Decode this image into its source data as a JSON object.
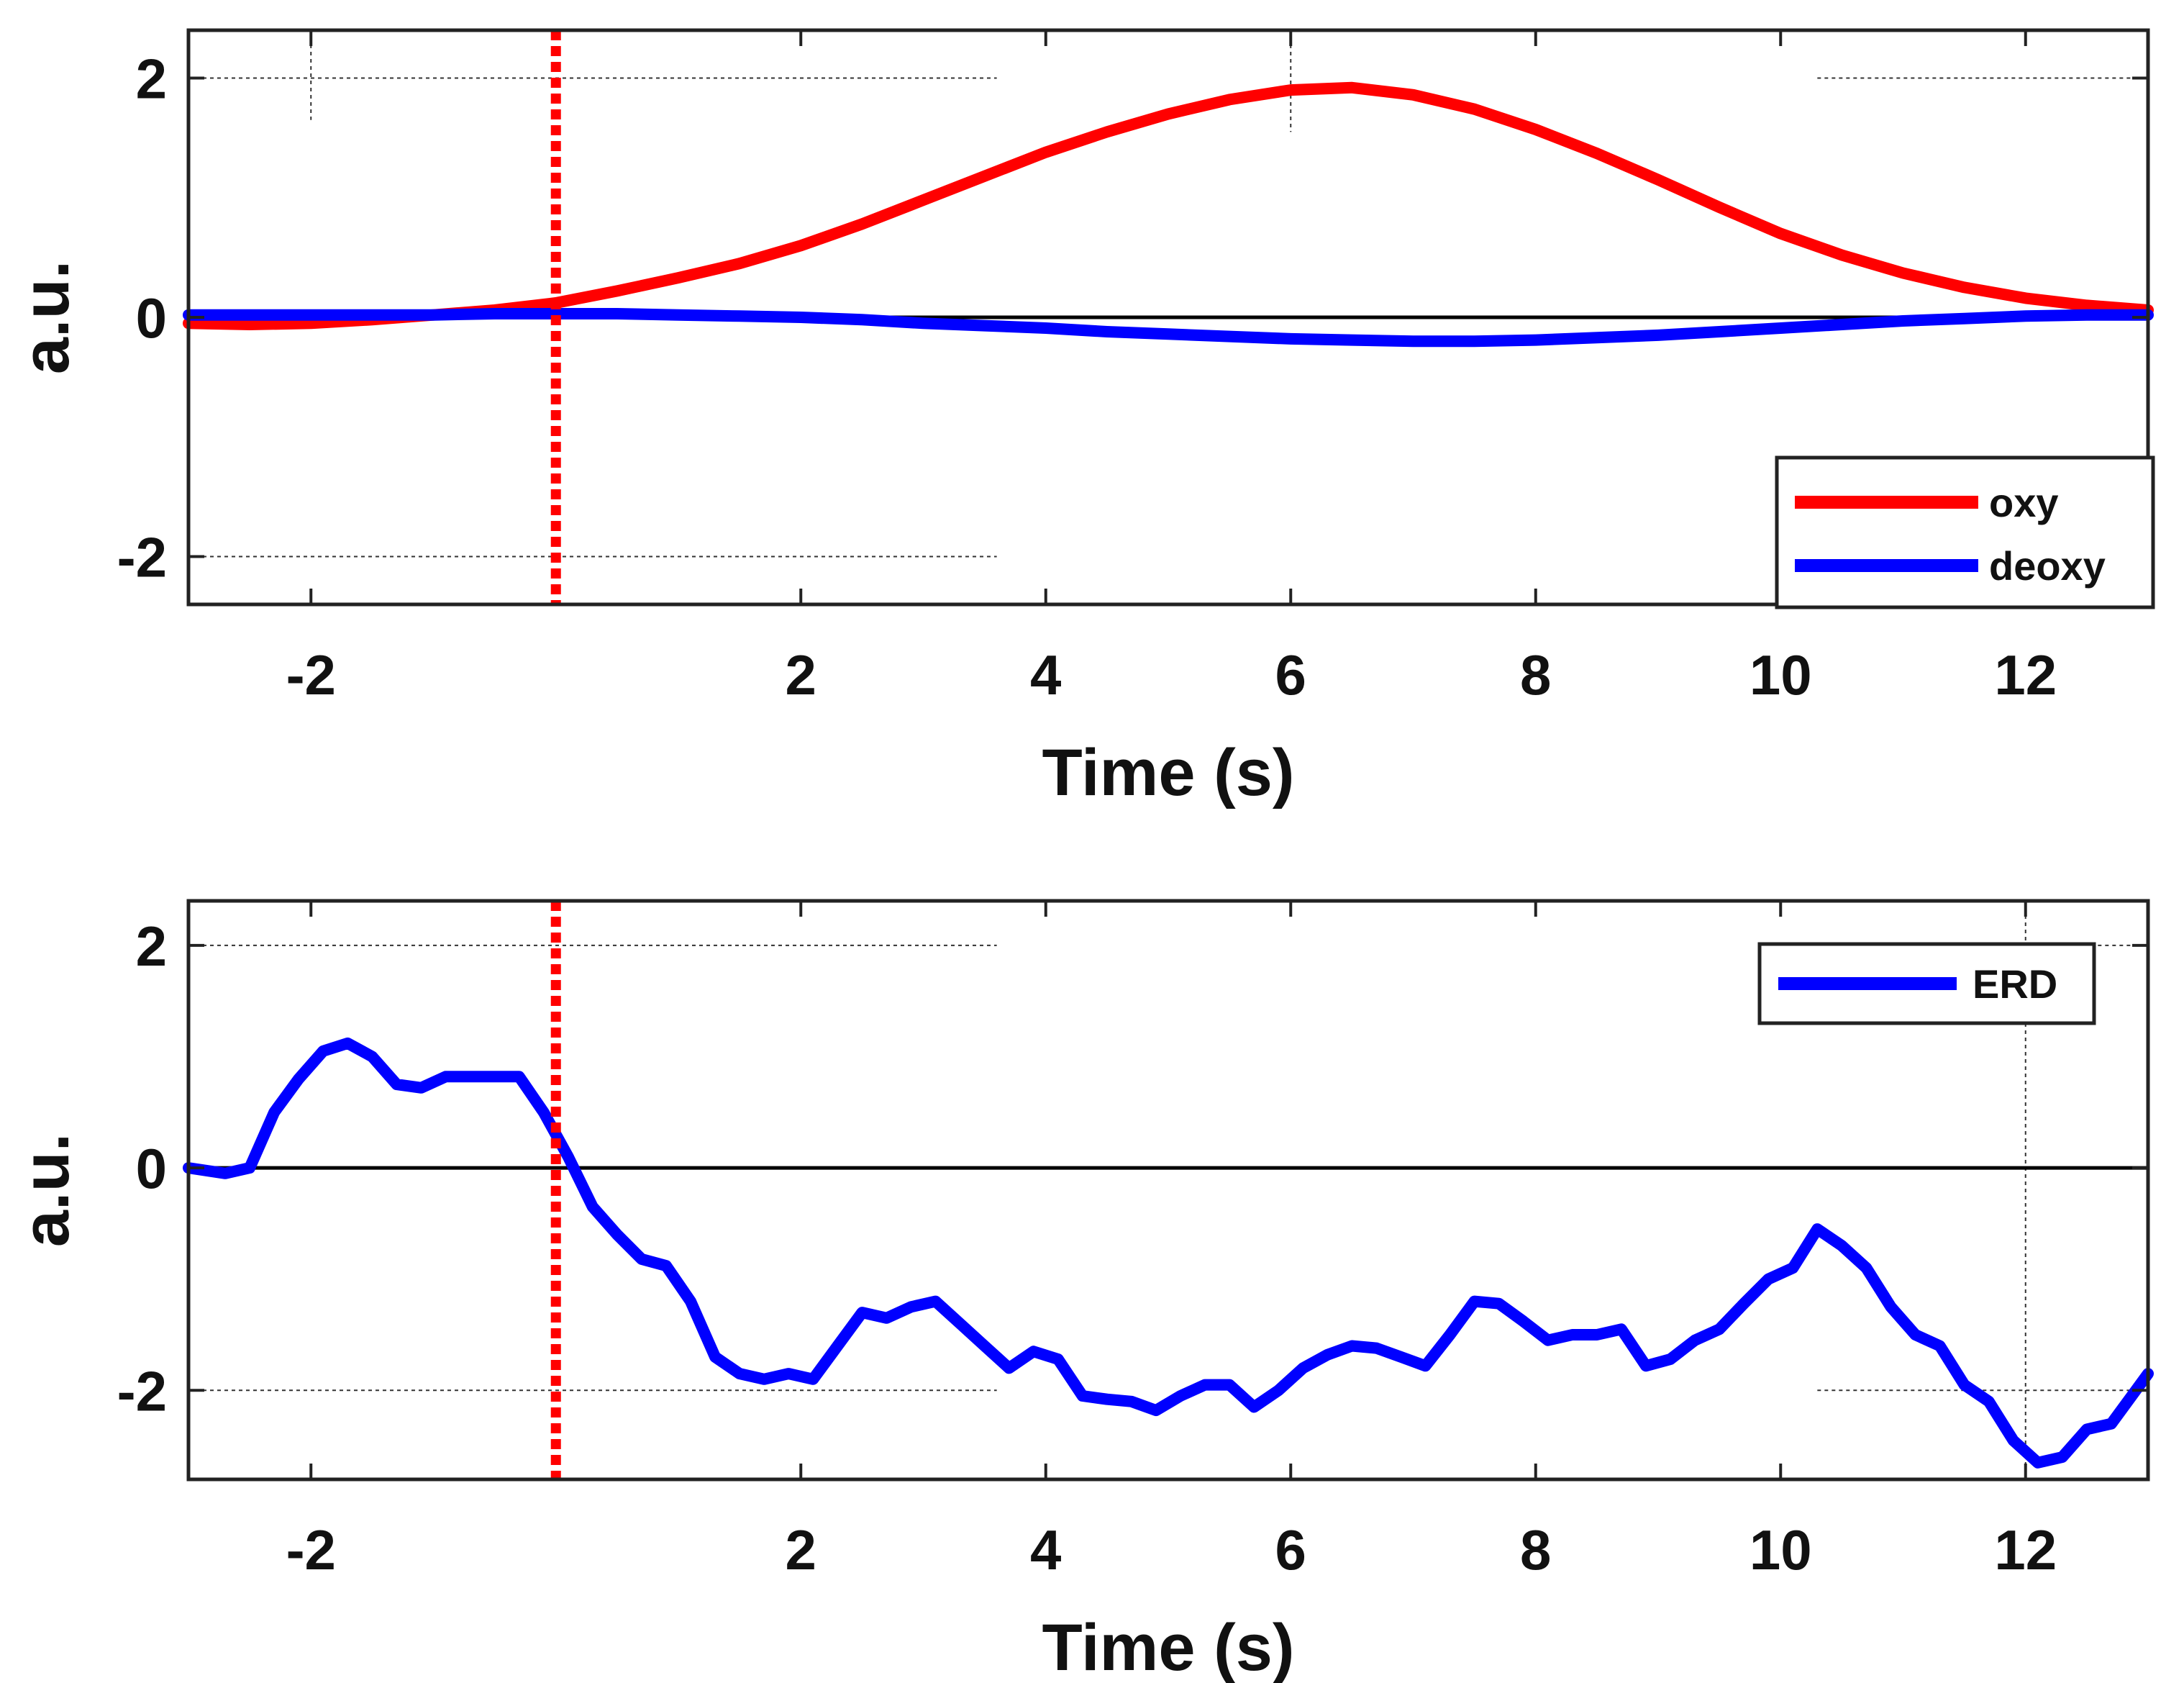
{
  "chart_data": [
    {
      "type": "line",
      "xlabel": "Time (s)",
      "ylabel": "a.u.",
      "xlim": [
        -3,
        13
      ],
      "ylim": [
        -2.4,
        2.4
      ],
      "xticks": [
        -2,
        2,
        4,
        6,
        8,
        10,
        12
      ],
      "yticks": [
        -2,
        0,
        2
      ],
      "grid": "partial dotted",
      "legend_position": "bottom-right",
      "stimulus_onset": 0,
      "colors": {
        "oxy": "#ff0000",
        "deoxy": "#0000ff",
        "onset": "#ff0000",
        "zero": "#000000"
      },
      "series": [
        {
          "name": "oxy",
          "x": [
            -3,
            -2.5,
            -2,
            -1.5,
            -1,
            -0.5,
            0,
            0.5,
            1,
            1.5,
            2,
            2.5,
            3,
            3.5,
            4,
            4.5,
            5,
            5.5,
            6,
            6.5,
            7,
            7.5,
            8,
            8.5,
            9,
            9.5,
            10,
            10.5,
            11,
            11.5,
            12,
            12.5,
            13
          ],
          "values": [
            -0.05,
            -0.06,
            -0.05,
            -0.02,
            0.02,
            0.06,
            0.12,
            0.22,
            0.33,
            0.45,
            0.6,
            0.78,
            0.98,
            1.18,
            1.38,
            1.55,
            1.7,
            1.82,
            1.9,
            1.92,
            1.86,
            1.74,
            1.57,
            1.37,
            1.15,
            0.92,
            0.7,
            0.52,
            0.37,
            0.25,
            0.16,
            0.1,
            0.06
          ]
        },
        {
          "name": "deoxy",
          "x": [
            -3,
            -2.5,
            -2,
            -1.5,
            -1,
            -0.5,
            0,
            0.5,
            1,
            1.5,
            2,
            2.5,
            3,
            3.5,
            4,
            4.5,
            5,
            5.5,
            6,
            6.5,
            7,
            7.5,
            8,
            8.5,
            9,
            9.5,
            10,
            10.5,
            11,
            11.5,
            12,
            12.5,
            13
          ],
          "values": [
            0.02,
            0.02,
            0.02,
            0.02,
            0.02,
            0.03,
            0.03,
            0.03,
            0.02,
            0.01,
            0.0,
            -0.02,
            -0.05,
            -0.07,
            -0.09,
            -0.12,
            -0.14,
            -0.16,
            -0.18,
            -0.19,
            -0.2,
            -0.2,
            -0.19,
            -0.17,
            -0.15,
            -0.12,
            -0.09,
            -0.06,
            -0.03,
            -0.01,
            0.01,
            0.02,
            0.02
          ]
        }
      ]
    },
    {
      "type": "line",
      "xlabel": "Time (s)",
      "ylabel": "a.u.",
      "xlim": [
        -3,
        13
      ],
      "ylim": [
        -2.8,
        2.4
      ],
      "xticks": [
        -2,
        2,
        4,
        6,
        8,
        10,
        12
      ],
      "yticks": [
        -2,
        0,
        2
      ],
      "grid": "partial dotted",
      "legend_position": "top-right",
      "stimulus_onset": 0,
      "colors": {
        "ERD": "#0000ff",
        "onset": "#ff0000",
        "zero": "#000000"
      },
      "series": [
        {
          "name": "ERD",
          "x": [
            -3,
            -2.7,
            -2.5,
            -2.3,
            -2.1,
            -1.9,
            -1.7,
            -1.5,
            -1.3,
            -1.1,
            -0.9,
            -0.7,
            -0.5,
            -0.3,
            -0.1,
            0.1,
            0.3,
            0.5,
            0.7,
            0.9,
            1.1,
            1.3,
            1.5,
            1.7,
            1.9,
            2.1,
            2.3,
            2.5,
            2.7,
            2.9,
            3.1,
            3.3,
            3.5,
            3.7,
            3.9,
            4.1,
            4.3,
            4.5,
            4.7,
            4.9,
            5.1,
            5.3,
            5.5,
            5.7,
            5.9,
            6.1,
            6.3,
            6.5,
            6.7,
            6.9,
            7.1,
            7.3,
            7.5,
            7.7,
            7.9,
            8.1,
            8.3,
            8.5,
            8.7,
            8.9,
            9.1,
            9.3,
            9.5,
            9.7,
            9.9,
            10.1,
            10.3,
            10.5,
            10.7,
            10.9,
            11.1,
            11.3,
            11.5,
            11.7,
            11.9,
            12.1,
            12.3,
            12.5,
            12.7,
            12.9,
            13
          ],
          "values": [
            0.0,
            -0.05,
            0.0,
            0.5,
            0.8,
            1.05,
            1.12,
            1.0,
            0.75,
            0.72,
            0.82,
            0.82,
            0.82,
            0.82,
            0.5,
            0.1,
            -0.35,
            -0.6,
            -0.82,
            -0.88,
            -1.2,
            -1.7,
            -1.85,
            -1.9,
            -1.85,
            -1.9,
            -1.6,
            -1.3,
            -1.35,
            -1.25,
            -1.2,
            -1.4,
            -1.6,
            -1.8,
            -1.65,
            -1.72,
            -2.05,
            -2.08,
            -2.1,
            -2.18,
            -2.05,
            -1.95,
            -1.95,
            -2.15,
            -2.0,
            -1.8,
            -1.68,
            -1.6,
            -1.62,
            -1.7,
            -1.78,
            -1.5,
            -1.2,
            -1.22,
            -1.38,
            -1.55,
            -1.5,
            -1.5,
            -1.45,
            -1.78,
            -1.72,
            -1.55,
            -1.45,
            -1.22,
            -1.0,
            -0.9,
            -0.55,
            -0.7,
            -0.9,
            -1.25,
            -1.5,
            -1.6,
            -1.95,
            -2.1,
            -2.45,
            -2.65,
            -2.6,
            -2.35,
            -2.3,
            -2.0,
            -1.85
          ]
        }
      ]
    }
  ]
}
